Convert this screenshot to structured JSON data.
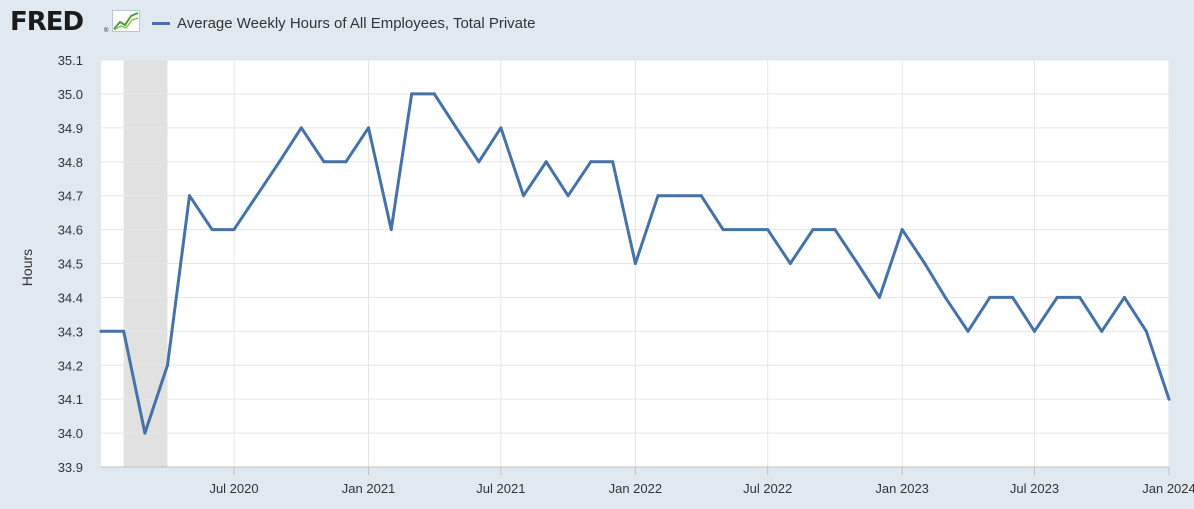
{
  "header": {
    "logo_text": "FRED",
    "logo_registered": "®",
    "logo_icon": "chart-line-icon"
  },
  "colors": {
    "background": "#e1e9f0",
    "plot_background": "#ffffff",
    "series": "#4572a7",
    "recession": "#e1e1e1",
    "grid": "#e6e6e6"
  },
  "chart_data": {
    "type": "line",
    "title": "",
    "xlabel": "",
    "ylabel": "Hours",
    "ylim": [
      33.9,
      35.1
    ],
    "yticks": [
      33.9,
      34.0,
      34.1,
      34.2,
      34.3,
      34.4,
      34.5,
      34.6,
      34.7,
      34.8,
      34.9,
      35.0,
      35.1
    ],
    "xticks": [
      "Jul 2020",
      "Jan 2021",
      "Jul 2021",
      "Jan 2022",
      "Jul 2022",
      "Jan 2023",
      "Jul 2023",
      "Jan 2024"
    ],
    "grid": true,
    "legend_position": "top-left",
    "recession_shading": {
      "start": "2020-02",
      "end": "2020-04"
    },
    "series": [
      {
        "name": "Average Weekly Hours of All Employees, Total Private",
        "x": [
          "2020-01",
          "2020-02",
          "2020-03",
          "2020-04",
          "2020-05",
          "2020-06",
          "2020-07",
          "2020-08",
          "2020-09",
          "2020-10",
          "2020-11",
          "2020-12",
          "2021-01",
          "2021-02",
          "2021-03",
          "2021-04",
          "2021-05",
          "2021-06",
          "2021-07",
          "2021-08",
          "2021-09",
          "2021-10",
          "2021-11",
          "2021-12",
          "2022-01",
          "2022-02",
          "2022-03",
          "2022-04",
          "2022-05",
          "2022-06",
          "2022-07",
          "2022-08",
          "2022-09",
          "2022-10",
          "2022-11",
          "2022-12",
          "2023-01",
          "2023-02",
          "2023-03",
          "2023-04",
          "2023-05",
          "2023-06",
          "2023-07",
          "2023-08",
          "2023-09",
          "2023-10",
          "2023-11",
          "2023-12",
          "2024-01"
        ],
        "values": [
          34.3,
          34.3,
          34.0,
          34.2,
          34.7,
          34.6,
          34.6,
          34.7,
          34.8,
          34.9,
          34.8,
          34.8,
          34.9,
          34.6,
          35.0,
          35.0,
          34.9,
          34.8,
          34.9,
          34.7,
          34.8,
          34.7,
          34.8,
          34.8,
          34.5,
          34.7,
          34.7,
          34.7,
          34.6,
          34.6,
          34.6,
          34.5,
          34.6,
          34.6,
          34.5,
          34.4,
          34.6,
          34.5,
          34.4,
          34.3,
          34.4,
          34.4,
          34.3,
          34.4,
          34.4,
          34.3,
          34.4,
          34.3,
          34.1
        ]
      }
    ]
  }
}
